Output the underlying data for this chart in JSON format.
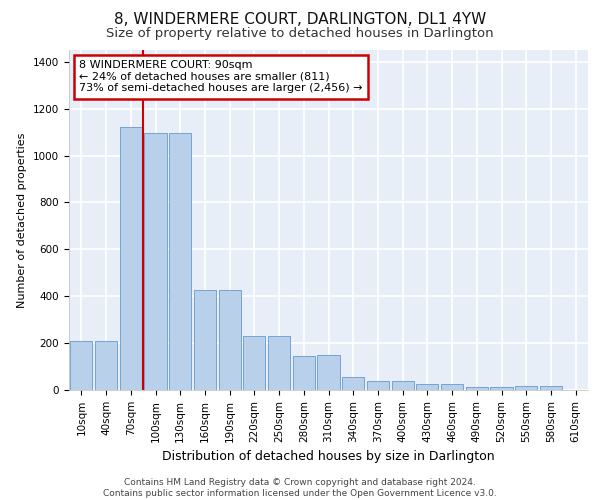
{
  "title": "8, WINDERMERE COURT, DARLINGTON, DL1 4YW",
  "subtitle": "Size of property relative to detached houses in Darlington",
  "xlabel": "Distribution of detached houses by size in Darlington",
  "ylabel": "Number of detached properties",
  "categories": [
    "10sqm",
    "40sqm",
    "70sqm",
    "100sqm",
    "130sqm",
    "160sqm",
    "190sqm",
    "220sqm",
    "250sqm",
    "280sqm",
    "310sqm",
    "340sqm",
    "370sqm",
    "400sqm",
    "430sqm",
    "460sqm",
    "490sqm",
    "520sqm",
    "550sqm",
    "580sqm",
    "610sqm"
  ],
  "values": [
    207,
    210,
    1120,
    1095,
    1095,
    425,
    428,
    230,
    232,
    145,
    148,
    55,
    38,
    37,
    25,
    25,
    12,
    12,
    18,
    18,
    0
  ],
  "bar_color": "#b8d0ea",
  "bar_edge_color": "#6699cc",
  "vline_color": "#cc0000",
  "annotation_text": "8 WINDERMERE COURT: 90sqm\n← 24% of detached houses are smaller (811)\n73% of semi-detached houses are larger (2,456) →",
  "annotation_box_color": "#ffffff",
  "annotation_box_edge": "#cc0000",
  "ylim": [
    0,
    1450
  ],
  "yticks": [
    0,
    200,
    400,
    600,
    800,
    1000,
    1200,
    1400
  ],
  "footer1": "Contains HM Land Registry data © Crown copyright and database right 2024.",
  "footer2": "Contains public sector information licensed under the Open Government Licence v3.0.",
  "bg_color": "#e8eef8",
  "grid_color": "#ffffff",
  "title_fontsize": 11,
  "subtitle_fontsize": 9.5,
  "xlabel_fontsize": 9,
  "ylabel_fontsize": 8,
  "tick_fontsize": 7.5,
  "footer_fontsize": 6.5,
  "annotation_fontsize": 8
}
